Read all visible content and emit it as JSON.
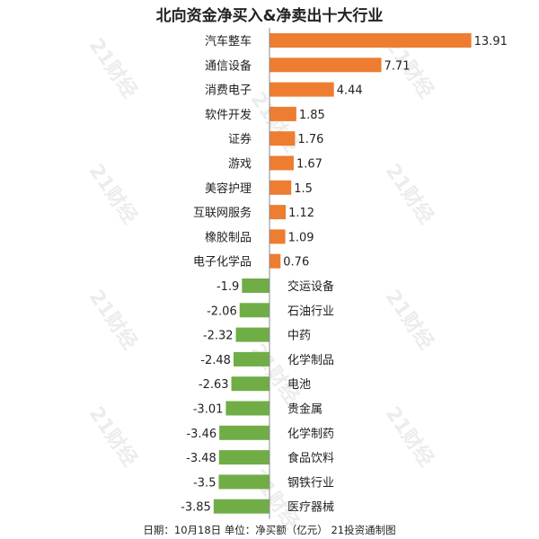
{
  "chart_data": {
    "type": "bar",
    "orientation": "horizontal",
    "title": "北向资金净买入&净卖出十大行业",
    "categories": [
      "汽车整车",
      "通信设备",
      "消费电子",
      "软件开发",
      "证券",
      "游戏",
      "美容护理",
      "互联网服务",
      "橡胶制品",
      "电子化学品",
      "交运设备",
      "石油行业",
      "中药",
      "化学制品",
      "电池",
      "贵金属",
      "化学制药",
      "食品饮料",
      "钢铁行业",
      "医疗器械"
    ],
    "values": [
      13.91,
      7.71,
      4.44,
      1.85,
      1.76,
      1.67,
      1.5,
      1.12,
      1.09,
      0.76,
      -1.9,
      -2.06,
      -2.32,
      -2.48,
      -2.63,
      -3.01,
      -3.46,
      -3.48,
      -3.5,
      -3.85
    ],
    "colors": {
      "positive": "#ED7D31",
      "negative": "#70AD47"
    },
    "xlabel": "",
    "ylabel": "",
    "xlim": [
      -3.85,
      13.91
    ],
    "grid": false,
    "legend": "none"
  },
  "footer": "日期：10月18日 单位：净买额（亿元） 21投资通制图",
  "watermark": "21财经"
}
